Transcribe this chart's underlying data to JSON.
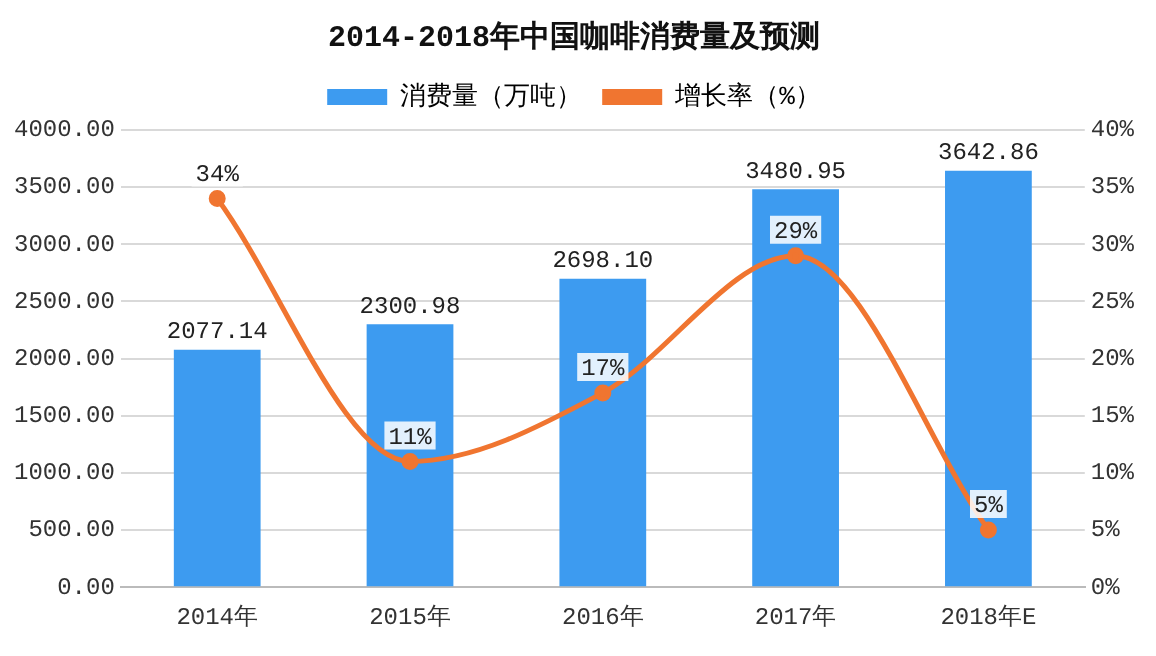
{
  "chart_data": {
    "type": "bar",
    "title": "2014-2018年中国咖啡消费量及预测",
    "categories": [
      "2014年",
      "2015年",
      "2016年",
      "2017年",
      "2018年E"
    ],
    "series": [
      {
        "name": "消费量（万吨）",
        "color": "#3d9bf0",
        "values": [
          2077.14,
          2300.98,
          2698.1,
          3480.95,
          3642.86
        ],
        "value_labels": [
          "2077.14",
          "2300.98",
          "2698.10",
          "3480.95",
          "3642.86"
        ]
      },
      {
        "name": "增长率（%）",
        "type": "line",
        "axis": "y2",
        "color": "#f07530",
        "values": [
          34,
          11,
          17,
          29,
          5
        ],
        "value_labels": [
          "34%",
          "11%",
          "17%",
          "29%",
          "5%"
        ]
      }
    ],
    "ylim": [
      0,
      4000
    ],
    "yticks": [
      {
        "value": 0,
        "label": "0.00"
      },
      {
        "value": 500,
        "label": "500.00"
      },
      {
        "value": 1000,
        "label": "1000.00"
      },
      {
        "value": 1500,
        "label": "1500.00"
      },
      {
        "value": 2000,
        "label": "2000.00"
      },
      {
        "value": 2500,
        "label": "2500.00"
      },
      {
        "value": 3000,
        "label": "3000.00"
      },
      {
        "value": 3500,
        "label": "3500.00"
      },
      {
        "value": 4000,
        "label": "4000.00"
      }
    ],
    "y2lim": [
      0,
      40
    ],
    "y2ticks": [
      {
        "value": 0,
        "label": "0%"
      },
      {
        "value": 5,
        "label": "5%"
      },
      {
        "value": 10,
        "label": "10%"
      },
      {
        "value": 15,
        "label": "15%"
      },
      {
        "value": 20,
        "label": "20%"
      },
      {
        "value": 25,
        "label": "25%"
      },
      {
        "value": 30,
        "label": "30%"
      },
      {
        "value": 35,
        "label": "35%"
      },
      {
        "value": 40,
        "label": "40%"
      }
    ],
    "grid": "y",
    "legend": "top",
    "marker": "circle",
    "line_style": "solid"
  }
}
